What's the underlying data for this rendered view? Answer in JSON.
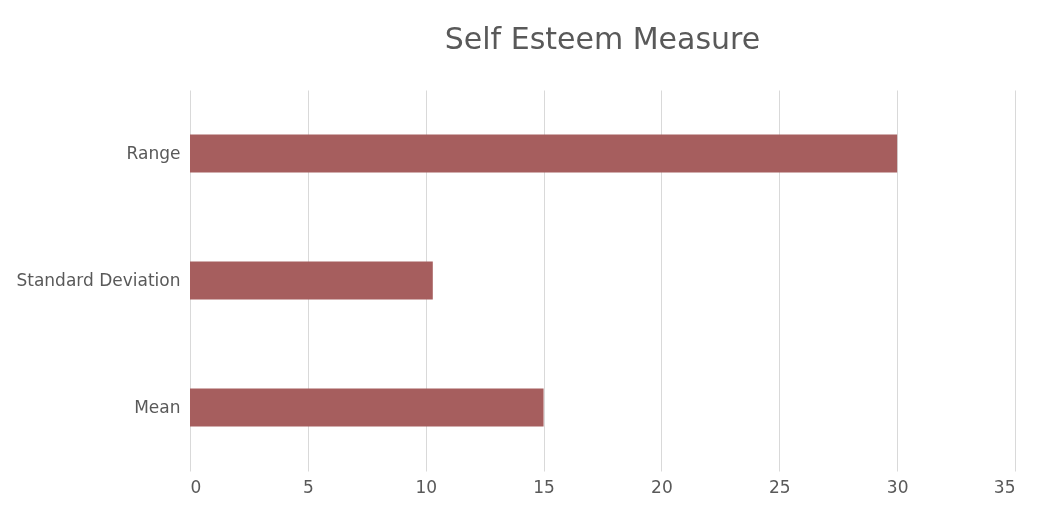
{
  "chart_data": {
    "type": "bar",
    "orientation": "horizontal",
    "title": "Self Esteem Measure",
    "categories": [
      "Range",
      "Standard Deviation",
      "Mean"
    ],
    "values": [
      30,
      10.3,
      15
    ],
    "color": "#a65e5e",
    "xlim": [
      0,
      35
    ],
    "xticks": [
      0,
      5,
      10,
      15,
      20,
      25,
      30,
      35
    ],
    "grid": "x"
  }
}
